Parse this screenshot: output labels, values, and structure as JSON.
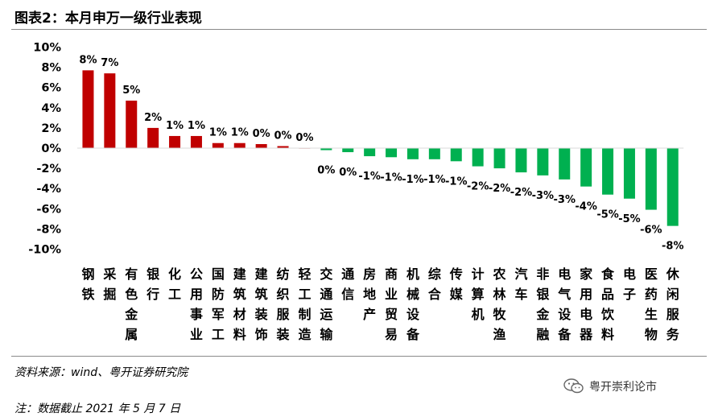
{
  "title": "图表2：本月申万一级行业表现",
  "source": "资料来源：wind、粤开证券研究院",
  "note": "注：数据截止 2021 年 5 月 7 日",
  "watermark": {
    "text": "粤开崇利论市",
    "icon": "wechat-icon"
  },
  "colors": {
    "positive": "#C00000",
    "negative": "#00B050",
    "rule": "#8a8a8a"
  },
  "chart_data": {
    "type": "bar",
    "title": "本月申万一级行业表现",
    "categories": [
      "钢铁",
      "采掘",
      "有色金属",
      "银行",
      "化工",
      "公用事业",
      "国防军工",
      "建筑材料",
      "建筑装饰",
      "纺织服装",
      "轻工制造",
      "交通运输",
      "通信",
      "房地产",
      "商业贸易",
      "机械设备",
      "综合",
      "传媒",
      "计算机",
      "农林牧渔",
      "汽车",
      "非银金融",
      "电气设备",
      "家用电器",
      "食品饮料",
      "电子",
      "医药生物",
      "休闲服务"
    ],
    "values": [
      7.7,
      7.4,
      4.7,
      2.0,
      1.2,
      1.2,
      0.5,
      0.5,
      0.4,
      0.2,
      0.0,
      -0.2,
      -0.4,
      -0.8,
      -0.9,
      -1.1,
      -1.1,
      -1.3,
      -1.8,
      -2.0,
      -2.4,
      -2.7,
      -3.1,
      -3.8,
      -4.6,
      -5.0,
      -6.1,
      -7.7
    ],
    "data_labels": [
      "8%",
      "7%",
      "5%",
      "2%",
      "1%",
      "1%",
      "1%",
      "1%",
      "0%",
      "0%",
      "0%",
      "0%",
      "0%",
      "-1%",
      "-1%",
      "-1%",
      "-1%",
      "-1%",
      "-2%",
      "-2%",
      "-2%",
      "-3%",
      "-3%",
      "-4%",
      "-5%",
      "-5%",
      "-6%",
      "-8%"
    ],
    "yticks": [
      "10%",
      "8%",
      "6%",
      "4%",
      "2%",
      "0%",
      "-2%",
      "-4%",
      "-6%",
      "-8%",
      "-10%"
    ],
    "ylim": [
      -10,
      10
    ],
    "unit": "%",
    "grid": false,
    "legend": "none"
  }
}
